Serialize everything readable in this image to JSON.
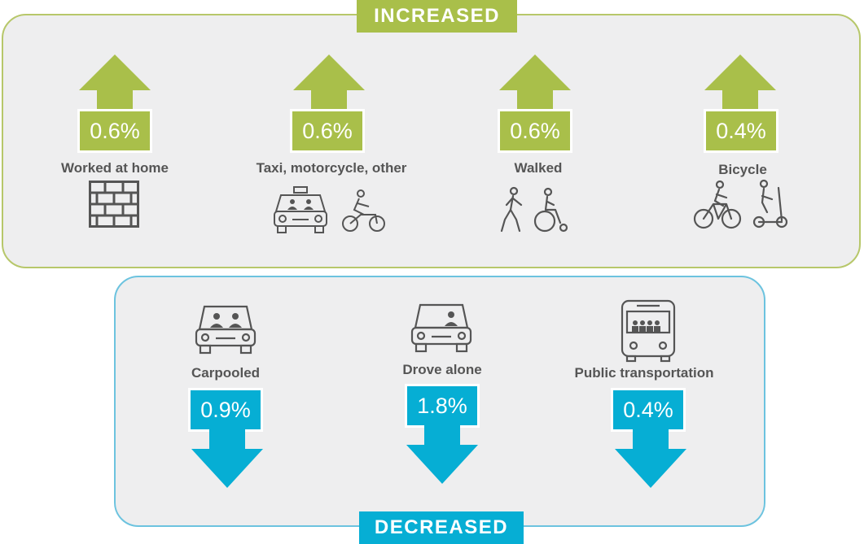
{
  "banners": {
    "increased": "INCREASED",
    "decreased": "DECREASED"
  },
  "colors": {
    "increase": "#a9bf4a",
    "decrease": "#06aed4",
    "panel": "#eeeeef",
    "text": "#555555"
  },
  "increased": [
    {
      "label": "Worked at home",
      "value": "0.6%",
      "icon": "brick-wall-icon"
    },
    {
      "label": "Taxi, motorcycle, other",
      "value": "0.6%",
      "icon": "taxi-motorcycle-icon"
    },
    {
      "label": "Walked",
      "value": "0.6%",
      "icon": "pedestrian-wheelchair-icon"
    },
    {
      "label": "Bicycle",
      "value": "0.4%",
      "icon": "bicycle-scooter-icon"
    }
  ],
  "decreased": [
    {
      "label": "Carpooled",
      "value": "0.9%",
      "icon": "carpool-car-icon"
    },
    {
      "label": "Drove alone",
      "value": "1.8%",
      "icon": "single-driver-car-icon"
    },
    {
      "label": "Public transportation",
      "value": "0.4%",
      "icon": "bus-icon"
    }
  ]
}
